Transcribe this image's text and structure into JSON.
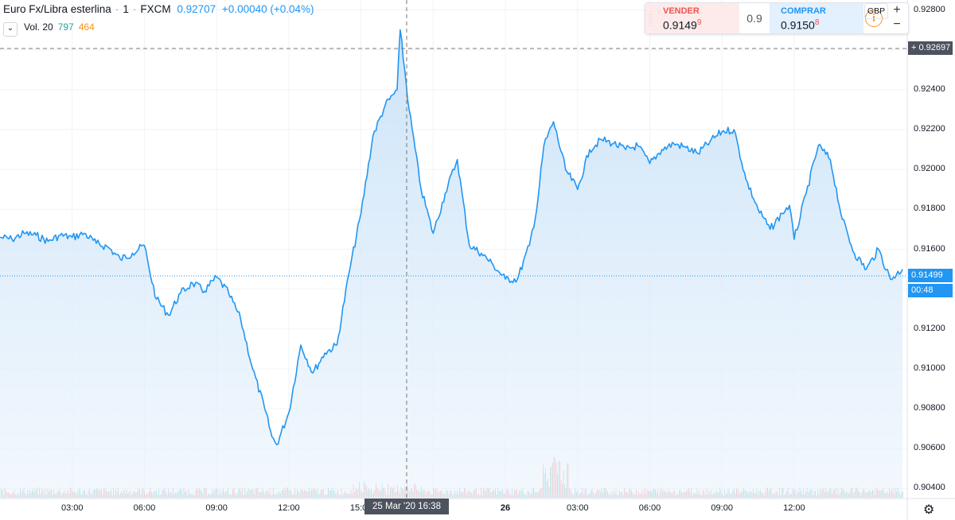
{
  "header": {
    "symbol": "Euro Fx/Libra esterlina",
    "interval": "1",
    "exchange": "FXCM",
    "last_price": "0.92707",
    "change": "+0.00040 (+0.04%)"
  },
  "volume": {
    "label": "Vol. 20",
    "up_value": "797",
    "down_value": "464"
  },
  "trade_panel": {
    "sell_label": "VENDER",
    "sell_price_main": "0.9149",
    "sell_price_sup": "9",
    "spread": "0.9",
    "buy_label": "COMPRAR",
    "buy_price_main": "0.9150",
    "buy_price_sup": "8",
    "info_icon": "i",
    "zoom_in": "+",
    "zoom_out": "−"
  },
  "currency": "GBP",
  "crosshair": {
    "price_label": "0.92697",
    "time_label": "25 Mar '20   16:38"
  },
  "last_price_tag": {
    "price": "0.91499",
    "countdown": "00:48"
  },
  "colors": {
    "line": "#2196f3",
    "fill_top": "#bfdcf6",
    "volume_up": "#26a69a",
    "volume_down": "#ef5350",
    "grid": "#f0f3fa"
  },
  "chart_data": {
    "type": "area",
    "title": "Euro Fx/Libra esterlina · 1 · FXCM",
    "ylim": [
      0.9035,
      0.9285
    ],
    "y_ticks": [
      "0.92800",
      "0.92600",
      "0.92400",
      "0.92200",
      "0.92000",
      "0.91800",
      "0.91600",
      "0.91400",
      "0.91200",
      "0.91000",
      "0.90800",
      "0.90600",
      "0.90400"
    ],
    "x_ticks": [
      "03:00",
      "06:00",
      "09:00",
      "12:00",
      "15:00",
      "",
      "26",
      "03:00",
      "06:00",
      "09:00",
      "12:00"
    ],
    "series": [
      {
        "x_hours": [
          0,
          0.5,
          1,
          1.5,
          2,
          2.5,
          3,
          3.5,
          4,
          4.5,
          5,
          5.5,
          6,
          6.2,
          6.5,
          7,
          7.5,
          8,
          8.5,
          9,
          9.5,
          10,
          10.5,
          11,
          11.3,
          11.5,
          12,
          12.5,
          13,
          13.5,
          14,
          14.5,
          15,
          15.5,
          16,
          16.5,
          16.63,
          17,
          17.5,
          18,
          18.5,
          19,
          19.5,
          20,
          20.5,
          21,
          21.5,
          22,
          22.3,
          22.6,
          23,
          23.5,
          24,
          24.5,
          25,
          25.5,
          26,
          26.5,
          27,
          27.5,
          28,
          28.5,
          29,
          29.5,
          30,
          30.5,
          31,
          31.5,
          32,
          32.5,
          32.8,
          33,
          33.5,
          34,
          34.5,
          35,
          35.5,
          36,
          36.5,
          37,
          37.5
        ],
        "values": [
          0.9166,
          0.9165,
          0.9168,
          0.9167,
          0.9164,
          0.9167,
          0.9166,
          0.9168,
          0.9163,
          0.9161,
          0.9155,
          0.9158,
          0.9162,
          0.915,
          0.9135,
          0.9127,
          0.9138,
          0.9143,
          0.9139,
          0.9146,
          0.9138,
          0.9125,
          0.91,
          0.908,
          0.9066,
          0.9062,
          0.9078,
          0.9112,
          0.9098,
          0.9108,
          0.9112,
          0.9148,
          0.9178,
          0.9217,
          0.9232,
          0.924,
          0.927,
          0.923,
          0.919,
          0.9168,
          0.9188,
          0.9205,
          0.9162,
          0.9158,
          0.9152,
          0.9145,
          0.9145,
          0.9162,
          0.918,
          0.9212,
          0.9224,
          0.92,
          0.919,
          0.921,
          0.9215,
          0.9213,
          0.921,
          0.9212,
          0.9203,
          0.921,
          0.9213,
          0.9211,
          0.9208,
          0.9214,
          0.9219,
          0.922,
          0.9195,
          0.918,
          0.917,
          0.9178,
          0.9182,
          0.9165,
          0.9188,
          0.9212,
          0.9205,
          0.9175,
          0.9158,
          0.915,
          0.916,
          0.9145,
          0.915
        ]
      }
    ]
  }
}
